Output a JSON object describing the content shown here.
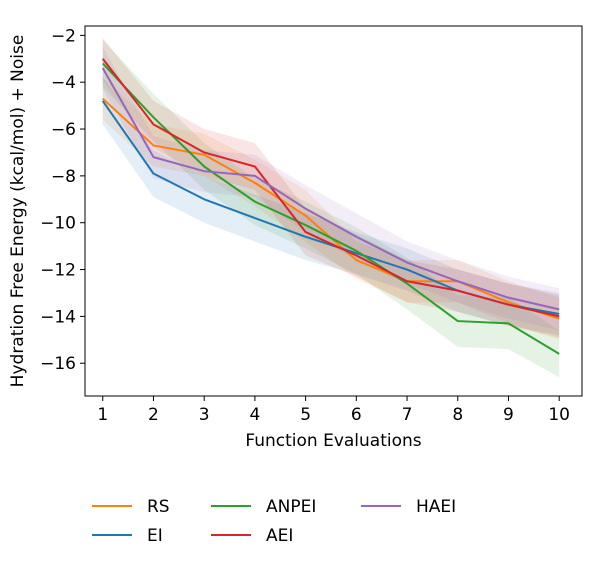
{
  "chart_data": {
    "type": "line",
    "title": "",
    "xlabel": "Function Evaluations",
    "ylabel": "Hydration Free Energy (kcal/mol) + Noise",
    "x": [
      1,
      2,
      3,
      4,
      5,
      6,
      7,
      8,
      9,
      10
    ],
    "xticks": [
      1,
      2,
      3,
      4,
      5,
      6,
      7,
      8,
      9,
      10
    ],
    "xlim": [
      0.65,
      10.45
    ],
    "yticks": [
      -2,
      -4,
      -6,
      -8,
      -10,
      -12,
      -14,
      -16
    ],
    "ylim": [
      -17.4,
      -1.6
    ],
    "grid": false,
    "legend_position": "bottom",
    "series": [
      {
        "name": "RS",
        "color": "#ff7f0e",
        "values": [
          -4.7,
          -6.7,
          -7.1,
          -8.3,
          -9.7,
          -11.6,
          -12.5,
          -12.5,
          -13.4,
          -14.1
        ],
        "lower": [
          -5.6,
          -7.6,
          -8.0,
          -9.3,
          -10.8,
          -12.4,
          -13.4,
          -13.4,
          -14.3,
          -15.0
        ],
        "upper": [
          -3.8,
          -5.8,
          -6.2,
          -7.3,
          -8.6,
          -10.8,
          -11.6,
          -11.6,
          -12.5,
          -13.2
        ]
      },
      {
        "name": "EI",
        "color": "#1f77b4",
        "values": [
          -4.8,
          -7.9,
          -9.0,
          -9.8,
          -10.6,
          -11.3,
          -12.0,
          -12.9,
          -13.5,
          -13.9
        ],
        "lower": [
          -5.8,
          -8.9,
          -10.0,
          -10.8,
          -11.6,
          -12.2,
          -12.9,
          -13.8,
          -14.4,
          -14.8
        ],
        "upper": [
          -3.8,
          -6.9,
          -8.0,
          -8.8,
          -9.6,
          -10.4,
          -11.1,
          -12.0,
          -12.6,
          -13.0
        ]
      },
      {
        "name": "ANPEI",
        "color": "#2ca02c",
        "values": [
          -3.2,
          -5.5,
          -7.6,
          -9.1,
          -10.1,
          -11.2,
          -12.6,
          -14.2,
          -14.3,
          -15.6
        ],
        "lower": [
          -4.2,
          -6.5,
          -8.6,
          -10.1,
          -11.1,
          -12.2,
          -13.7,
          -15.3,
          -15.4,
          -16.6
        ],
        "upper": [
          -2.2,
          -4.5,
          -6.6,
          -8.1,
          -9.1,
          -10.2,
          -11.5,
          -13.1,
          -13.2,
          -14.6
        ]
      },
      {
        "name": "AEI",
        "color": "#d62728",
        "values": [
          -3.0,
          -5.8,
          -7.0,
          -7.6,
          -10.4,
          -11.4,
          -12.5,
          -12.9,
          -13.5,
          -14.0
        ],
        "lower": [
          -3.9,
          -6.8,
          -8.0,
          -8.6,
          -11.4,
          -12.3,
          -13.4,
          -13.8,
          -14.4,
          -14.9
        ],
        "upper": [
          -2.1,
          -4.8,
          -6.0,
          -6.6,
          -9.4,
          -10.5,
          -11.6,
          -12.0,
          -12.6,
          -13.1
        ]
      },
      {
        "name": "HAEI",
        "color": "#9467bd",
        "values": [
          -3.4,
          -7.2,
          -7.8,
          -8.0,
          -9.4,
          -10.6,
          -11.7,
          -12.5,
          -13.2,
          -13.7
        ],
        "lower": [
          -4.3,
          -8.1,
          -8.7,
          -8.9,
          -10.4,
          -11.6,
          -12.6,
          -13.4,
          -14.1,
          -14.6
        ],
        "upper": [
          -2.5,
          -6.3,
          -6.9,
          -7.1,
          -8.4,
          -9.6,
          -10.8,
          -11.6,
          -12.3,
          -12.8
        ]
      }
    ],
    "legend_order": [
      "RS",
      "EI",
      "ANPEI",
      "AEI",
      "HAEI"
    ]
  }
}
